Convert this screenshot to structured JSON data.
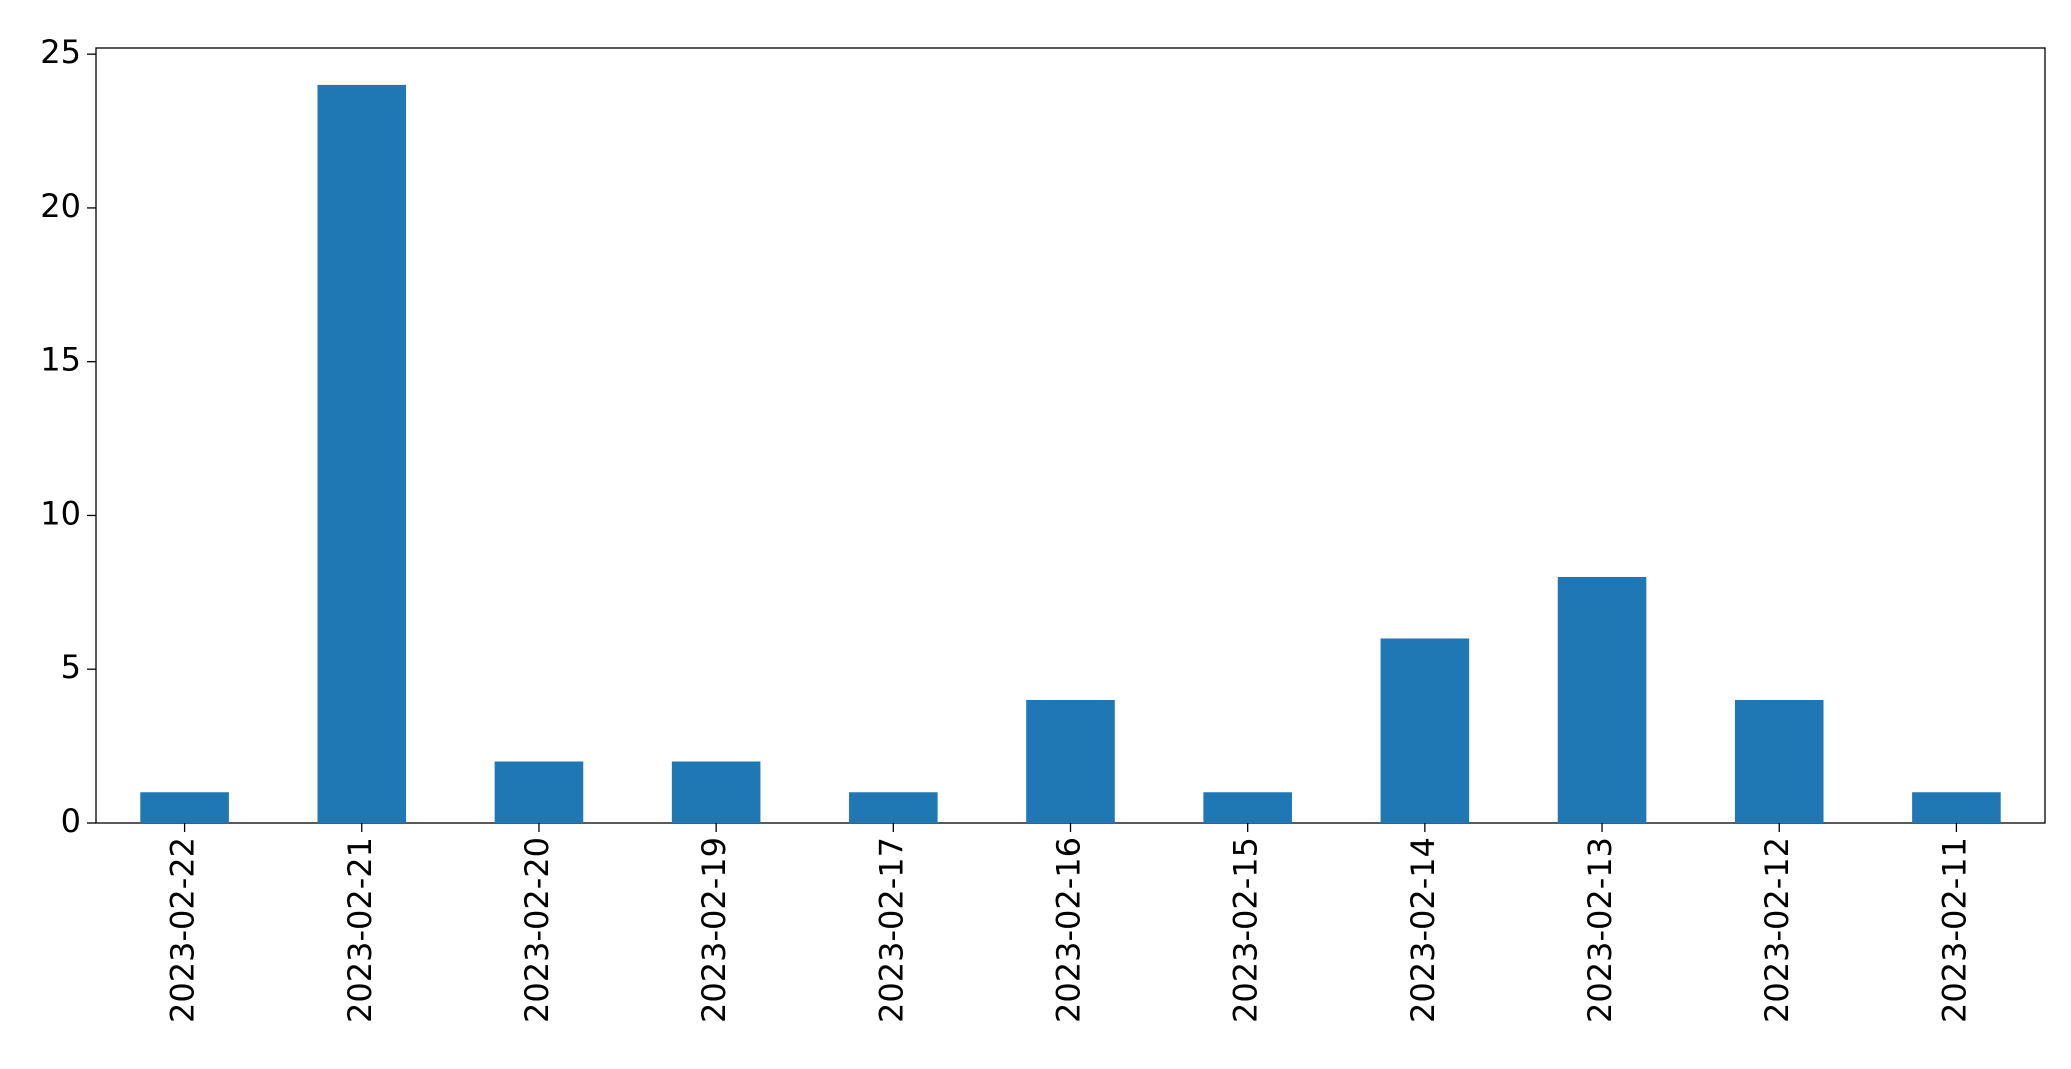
{
  "chart_data": {
    "type": "bar",
    "categories": [
      "2023-02-22",
      "2023-02-21",
      "2023-02-20",
      "2023-02-19",
      "2023-02-17",
      "2023-02-16",
      "2023-02-15",
      "2023-02-14",
      "2023-02-13",
      "2023-02-12",
      "2023-02-11"
    ],
    "values": [
      1,
      24,
      2,
      2,
      1,
      4,
      1,
      6,
      8,
      4,
      1
    ],
    "color": "#1f77b4",
    "ylim": [
      0,
      25.2
    ],
    "yticks": [
      0,
      5,
      10,
      15,
      20,
      25
    ],
    "grid": false
  }
}
